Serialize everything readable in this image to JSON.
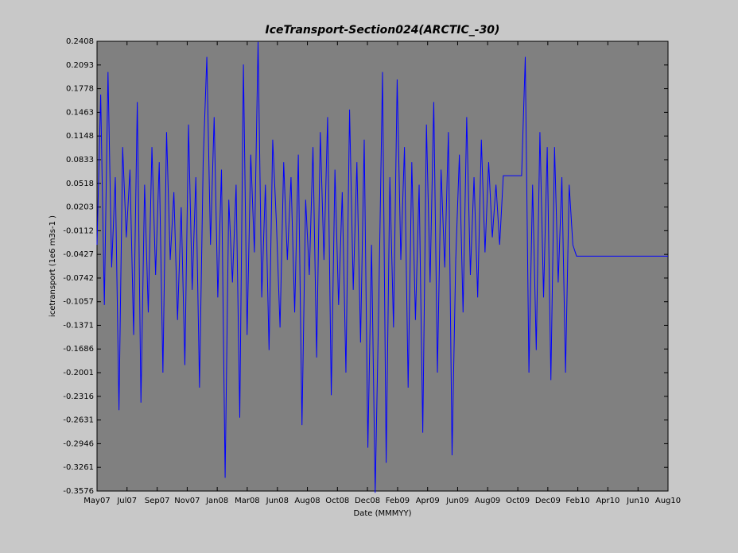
{
  "chart_data": {
    "type": "line",
    "title": "IceTransport-Section024(ARCTIC_-30)",
    "x_label": "Date (MMMYY)",
    "y_label": "icetransport (1e6 m3s-1 )",
    "color": "#0000ff",
    "xlim": [
      0,
      39
    ],
    "xticks": [
      {
        "value": 0,
        "label": "May07"
      },
      {
        "value": 2.05,
        "label": "Jul07"
      },
      {
        "value": 4.11,
        "label": "Sep07"
      },
      {
        "value": 6.16,
        "label": "Nov07"
      },
      {
        "value": 8.21,
        "label": "Jan08"
      },
      {
        "value": 10.26,
        "label": "Mar08"
      },
      {
        "value": 12.32,
        "label": "Jun08"
      },
      {
        "value": 14.37,
        "label": "Aug08"
      },
      {
        "value": 16.42,
        "label": "Oct08"
      },
      {
        "value": 18.47,
        "label": "Dec08"
      },
      {
        "value": 20.53,
        "label": "Feb09"
      },
      {
        "value": 22.58,
        "label": "Apr09"
      },
      {
        "value": 24.63,
        "label": "Jun09"
      },
      {
        "value": 26.68,
        "label": "Aug09"
      },
      {
        "value": 28.74,
        "label": "Oct09"
      },
      {
        "value": 30.79,
        "label": "Dec09"
      },
      {
        "value": 32.84,
        "label": "Feb10"
      },
      {
        "value": 34.89,
        "label": "Apr10"
      },
      {
        "value": 36.95,
        "label": "Jun10"
      },
      {
        "value": 39,
        "label": "Aug10"
      }
    ],
    "ylim": [
      -0.3576,
      0.2408
    ],
    "yticks": [
      -0.3576,
      -0.3261,
      -0.2946,
      -0.2631,
      -0.2316,
      -0.2001,
      -0.1686,
      -0.1371,
      -0.1057,
      -0.0742,
      -0.0427,
      -0.0112,
      0.0203,
      0.0518,
      0.0833,
      0.1148,
      0.1463,
      0.1778,
      0.2093,
      0.2408
    ],
    "x": [
      0,
      0.25,
      0.5,
      0.75,
      1,
      1.25,
      1.5,
      1.75,
      2,
      2.25,
      2.5,
      2.75,
      3,
      3.25,
      3.5,
      3.75,
      4,
      4.25,
      4.5,
      4.75,
      5,
      5.25,
      5.5,
      5.75,
      6,
      6.25,
      6.5,
      6.75,
      7,
      7.25,
      7.5,
      7.75,
      8,
      8.25,
      8.5,
      8.75,
      9,
      9.25,
      9.5,
      9.75,
      10,
      10.25,
      10.5,
      10.75,
      11,
      11.25,
      11.5,
      11.75,
      12,
      12.25,
      12.5,
      12.75,
      13,
      13.25,
      13.5,
      13.75,
      14,
      14.25,
      14.5,
      14.75,
      15,
      15.25,
      15.5,
      15.75,
      16,
      16.25,
      16.5,
      16.75,
      17,
      17.25,
      17.5,
      17.75,
      18,
      18.25,
      18.5,
      18.75,
      19,
      19.25,
      19.5,
      19.75,
      20,
      20.25,
      20.5,
      20.75,
      21,
      21.25,
      21.5,
      21.75,
      22,
      22.25,
      22.5,
      22.75,
      23,
      23.25,
      23.5,
      23.75,
      24,
      24.25,
      24.5,
      24.75,
      25,
      25.25,
      25.5,
      25.75,
      26,
      26.25,
      26.5,
      26.75,
      27,
      27.25,
      27.5,
      27.75,
      29,
      29.25,
      29.5,
      29.75,
      30,
      30.25,
      30.5,
      30.75,
      31,
      31.25,
      31.5,
      31.75,
      32,
      32.25,
      32.5,
      32.75,
      39
    ],
    "values": [
      -0.03,
      0.17,
      -0.11,
      0.2,
      -0.06,
      0.06,
      -0.25,
      0.1,
      -0.02,
      0.07,
      -0.15,
      0.16,
      -0.24,
      0.05,
      -0.12,
      0.1,
      -0.07,
      0.08,
      -0.2,
      0.12,
      -0.05,
      0.04,
      -0.13,
      0.02,
      -0.19,
      0.13,
      -0.09,
      0.06,
      -0.22,
      0.08,
      0.22,
      -0.03,
      0.14,
      -0.1,
      0.07,
      -0.34,
      0.03,
      -0.08,
      0.05,
      -0.26,
      0.21,
      -0.15,
      0.09,
      -0.04,
      0.24,
      -0.1,
      0.05,
      -0.17,
      0.11,
      0.0,
      -0.14,
      0.08,
      -0.05,
      0.06,
      -0.12,
      0.09,
      -0.27,
      0.03,
      -0.07,
      0.1,
      -0.18,
      0.12,
      -0.05,
      0.14,
      -0.23,
      0.07,
      -0.11,
      0.04,
      -0.2,
      0.15,
      -0.09,
      0.08,
      -0.16,
      0.11,
      -0.3,
      -0.03,
      -0.36,
      -0.1,
      0.2,
      -0.32,
      0.06,
      -0.14,
      0.19,
      -0.05,
      0.1,
      -0.22,
      0.08,
      -0.13,
      0.05,
      -0.28,
      0.13,
      -0.08,
      0.16,
      -0.2,
      0.07,
      -0.06,
      0.12,
      -0.31,
      -0.05,
      0.09,
      -0.12,
      0.14,
      -0.07,
      0.06,
      -0.1,
      0.11,
      -0.04,
      0.08,
      -0.02,
      0.05,
      -0.03,
      0.062,
      0.062,
      0.22,
      -0.2,
      0.05,
      -0.17,
      0.12,
      -0.1,
      0.1,
      -0.21,
      0.1,
      -0.08,
      0.06,
      -0.2,
      0.05,
      -0.03,
      -0.045,
      -0.045
    ]
  }
}
